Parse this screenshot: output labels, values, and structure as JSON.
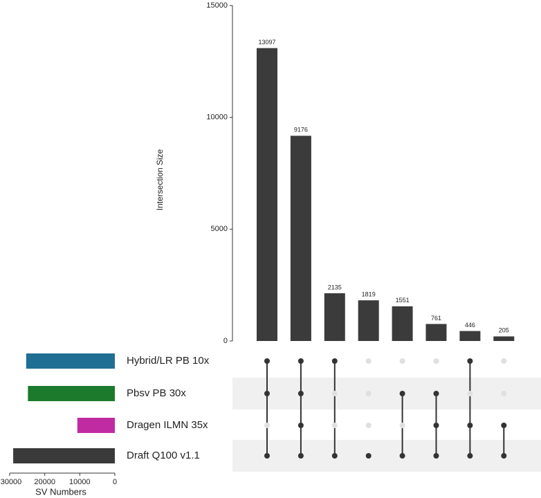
{
  "chart_data": {
    "type": "upset",
    "y_label": "Intersection Size",
    "x_label": "SV Numbers",
    "ylim": [
      0,
      15000
    ],
    "yticks": [
      0,
      5000,
      10000,
      15000
    ],
    "values": [
      13097,
      9176,
      2135,
      1819,
      1551,
      761,
      446,
      205
    ],
    "bar_color": "#3b3b3b",
    "sets": [
      {
        "name": "Hybrid/LR PB 10x",
        "color": "#1f6e93",
        "size": 25300
      },
      {
        "name": "Pbsv PB 30x",
        "color": "#1b7a2c",
        "size": 24800
      },
      {
        "name": "Dragen ILMN 35x",
        "color": "#c12ba1",
        "size": 10700
      },
      {
        "name": "Draft Q100 v1.1",
        "color": "#3a3a3a",
        "size": 29000
      }
    ],
    "membership": [
      [
        1,
        1,
        0,
        1
      ],
      [
        1,
        1,
        1,
        1
      ],
      [
        1,
        0,
        0,
        1
      ],
      [
        0,
        0,
        0,
        1
      ],
      [
        0,
        1,
        0,
        1
      ],
      [
        0,
        1,
        1,
        1
      ],
      [
        1,
        0,
        1,
        1
      ],
      [
        0,
        0,
        1,
        1
      ]
    ],
    "xlim": [
      30000,
      0
    ],
    "xticks": [
      30000,
      20000,
      10000,
      0
    ]
  }
}
